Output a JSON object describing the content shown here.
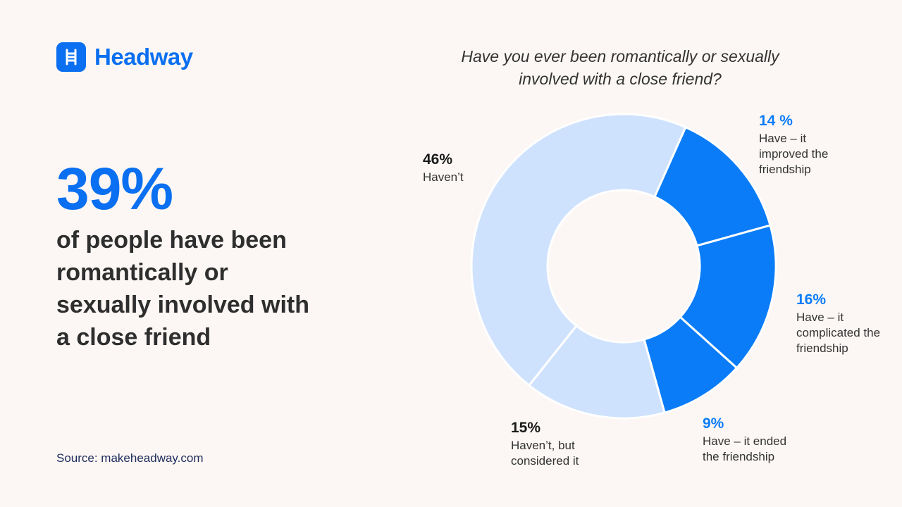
{
  "brand": "Headway",
  "stat": "39%",
  "stat_text": "of people have been romantically or sexually involved with a close friend",
  "source": "Source: makeheadway.com",
  "chart_data": {
    "type": "pie",
    "donut": true,
    "title": "Have you ever been romantically or sexually involved with a close friend?",
    "categories": [
      "Have – it improved the friendship",
      "Have – it complicated the friendship",
      "Have – it ended the friendship",
      "Haven’t, but considered it",
      "Haven’t"
    ],
    "values": [
      14,
      16,
      9,
      15,
      46
    ],
    "value_labels": [
      "14 %",
      "16%",
      "9%",
      "15%",
      "46%"
    ],
    "colors": [
      "#0a7cf8",
      "#0a7cf8",
      "#0a7cf8",
      "#cfe2fd",
      "#cfe2fd"
    ]
  }
}
